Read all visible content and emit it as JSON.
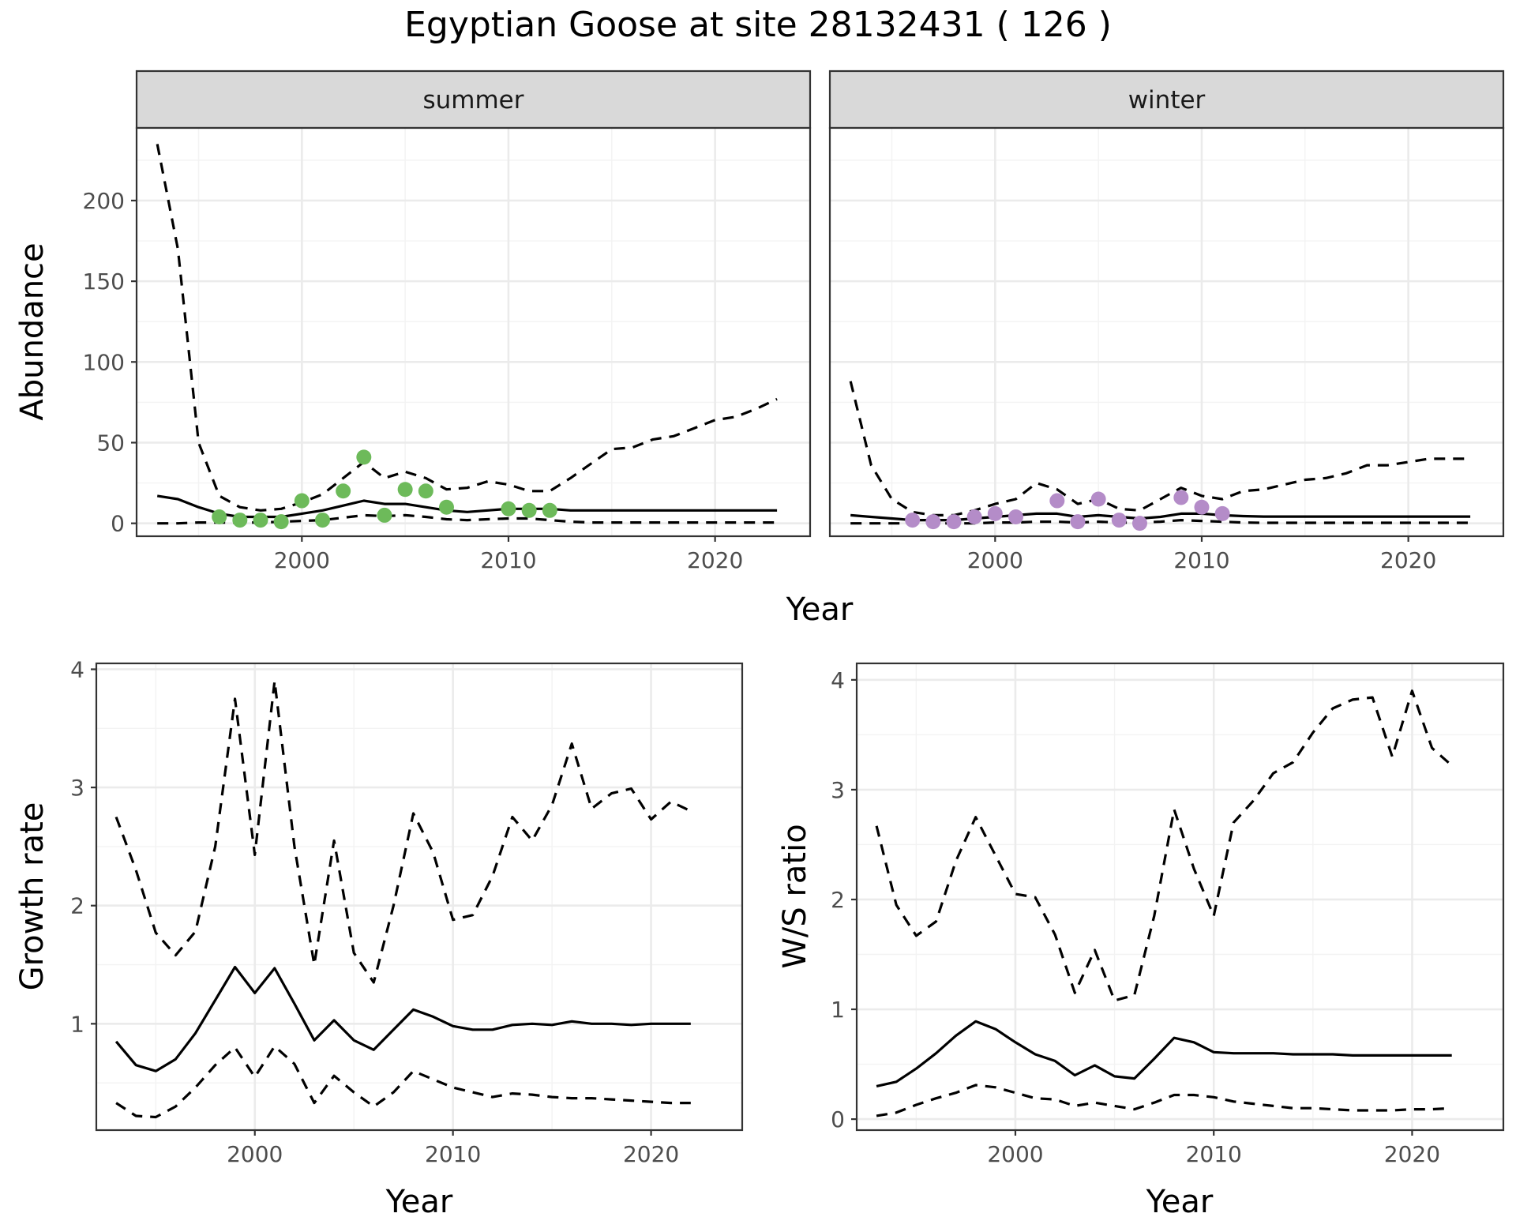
{
  "title": "Egyptian Goose at site 28132431 ( 126 )",
  "colors": {
    "summer_points": "#6dba5a",
    "winter_points": "#b48cc8"
  },
  "chart_data": [
    {
      "id": "abundance",
      "type": "line",
      "ylabel": "Abundance",
      "xlabel": "Year",
      "xlim": [
        1992,
        2024.6
      ],
      "ylim": [
        -8,
        245
      ],
      "x_ticks": [
        2000,
        2010,
        2020
      ],
      "y_ticks": [
        0,
        50,
        100,
        150,
        200
      ],
      "facets": [
        {
          "label": "summer",
          "point_color": "#6dba5a",
          "series": [
            {
              "role": "estimate",
              "style": "solid",
              "x": [
                1993,
                1994,
                1995,
                1996,
                1997,
                1998,
                1999,
                2000,
                2001,
                2002,
                2003,
                2004,
                2005,
                2006,
                2007,
                2008,
                2009,
                2010,
                2011,
                2012,
                2013,
                2014,
                2015,
                2016,
                2017,
                2018,
                2019,
                2020,
                2021,
                2022,
                2023
              ],
              "y": [
                17,
                15,
                10,
                6,
                4,
                4,
                4,
                6,
                8,
                11,
                14,
                12,
                12,
                10,
                8,
                7,
                8,
                9,
                9,
                9,
                8,
                8,
                8,
                8,
                8,
                8,
                8,
                8,
                8,
                8,
                8
              ]
            },
            {
              "role": "upper",
              "style": "dashed",
              "x": [
                1993,
                1994,
                1995,
                1996,
                1997,
                1998,
                1999,
                2000,
                2001,
                2002,
                2003,
                2004,
                2005,
                2006,
                2007,
                2008,
                2009,
                2010,
                2011,
                2012,
                2013,
                2014,
                2015,
                2016,
                2017,
                2018,
                2019,
                2020,
                2021,
                2022,
                2023
              ],
              "y": [
                235,
                170,
                50,
                17,
                10,
                8,
                9,
                13,
                18,
                28,
                38,
                28,
                32,
                28,
                21,
                22,
                26,
                24,
                20,
                20,
                28,
                37,
                46,
                47,
                52,
                54,
                59,
                64,
                66,
                71,
                77
              ]
            },
            {
              "role": "lower",
              "style": "dashed",
              "x": [
                1993,
                1994,
                1995,
                1996,
                1997,
                1998,
                1999,
                2000,
                2001,
                2002,
                2003,
                2004,
                2005,
                2006,
                2007,
                2008,
                2009,
                2010,
                2011,
                2012,
                2013,
                2014,
                2015,
                2016,
                2017,
                2018,
                2019,
                2020,
                2021,
                2022,
                2023
              ],
              "y": [
                0,
                0,
                0.5,
                0.5,
                0.5,
                0.5,
                1,
                1.5,
                2,
                3.5,
                5,
                4.5,
                5,
                4,
                2.5,
                2,
                2.5,
                3,
                3,
                2,
                1,
                0.5,
                0.5,
                0.5,
                0.5,
                0.5,
                0.5,
                0.5,
                0.5,
                0.5,
                0.5
              ]
            }
          ],
          "points": {
            "x": [
              1996,
              1997,
              1998,
              1999,
              2000,
              2001,
              2002,
              2003,
              2004,
              2005,
              2006,
              2007,
              2010,
              2011,
              2012
            ],
            "y": [
              4,
              2,
              2,
              1,
              14,
              2,
              20,
              41,
              5,
              21,
              20,
              10,
              9,
              8,
              8
            ]
          }
        },
        {
          "label": "winter",
          "point_color": "#b48cc8",
          "series": [
            {
              "role": "estimate",
              "style": "solid",
              "x": [
                1993,
                1994,
                1995,
                1996,
                1997,
                1998,
                1999,
                2000,
                2001,
                2002,
                2003,
                2004,
                2005,
                2006,
                2007,
                2008,
                2009,
                2010,
                2011,
                2012,
                2013,
                2014,
                2015,
                2016,
                2017,
                2018,
                2019,
                2020,
                2021,
                2022,
                2023
              ],
              "y": [
                5,
                4,
                3,
                2,
                2,
                2,
                3,
                4,
                5,
                6,
                6,
                4,
                5,
                4,
                3,
                4,
                6,
                6,
                5,
                4.5,
                4.2,
                4.2,
                4.2,
                4.2,
                4.2,
                4.2,
                4.2,
                4.2,
                4.2,
                4.2,
                4.2
              ]
            },
            {
              "role": "upper",
              "style": "dashed",
              "x": [
                1993,
                1994,
                1995,
                1996,
                1997,
                1998,
                1999,
                2000,
                2001,
                2002,
                2003,
                2004,
                2005,
                2006,
                2007,
                2008,
                2009,
                2010,
                2011,
                2012,
                2013,
                2014,
                2015,
                2016,
                2017,
                2018,
                2019,
                2020,
                2021,
                2022,
                2023
              ],
              "y": [
                88,
                36,
                15,
                7,
                5,
                5,
                8,
                12,
                15,
                25,
                21,
                12,
                15,
                9,
                8,
                15,
                22,
                17,
                15,
                20,
                21,
                24,
                27,
                28,
                31,
                36,
                36,
                38,
                40,
                40,
                40
              ]
            },
            {
              "role": "lower",
              "style": "dashed",
              "x": [
                1993,
                1994,
                1995,
                1996,
                1997,
                1998,
                1999,
                2000,
                2001,
                2002,
                2003,
                2004,
                2005,
                2006,
                2007,
                2008,
                2009,
                2010,
                2011,
                2012,
                2013,
                2014,
                2015,
                2016,
                2017,
                2018,
                2019,
                2020,
                2021,
                2022,
                2023
              ],
              "y": [
                0,
                0,
                0,
                0,
                0,
                0,
                0,
                0.5,
                0.5,
                1,
                1,
                0.5,
                1,
                0.5,
                0.5,
                1,
                2,
                1.5,
                1,
                0.5,
                0.3,
                0.3,
                0.3,
                0.3,
                0.3,
                0.3,
                0.3,
                0.3,
                0.3,
                0.3,
                0.3
              ]
            }
          ],
          "points": {
            "x": [
              1996,
              1997,
              1998,
              1999,
              2000,
              2001,
              2003,
              2004,
              2005,
              2006,
              2007,
              2009,
              2010,
              2011
            ],
            "y": [
              2,
              1,
              1,
              4,
              6,
              4,
              14,
              1,
              15,
              2,
              0,
              16,
              10,
              6
            ]
          }
        }
      ]
    },
    {
      "id": "growth",
      "type": "line",
      "ylabel": "Growth rate",
      "xlabel": "Year",
      "xlim": [
        1992,
        2024.6
      ],
      "ylim": [
        0.1,
        4.05
      ],
      "x_ticks": [
        2000,
        2010,
        2020
      ],
      "y_ticks": [
        1,
        2,
        3,
        4
      ],
      "series": [
        {
          "role": "estimate",
          "style": "solid",
          "x": [
            1993,
            1994,
            1995,
            1996,
            1997,
            1998,
            1999,
            2000,
            2001,
            2002,
            2003,
            2004,
            2005,
            2006,
            2007,
            2008,
            2009,
            2010,
            2011,
            2012,
            2013,
            2014,
            2015,
            2016,
            2017,
            2018,
            2019,
            2020,
            2021,
            2022
          ],
          "y": [
            0.85,
            0.65,
            0.6,
            0.7,
            0.92,
            1.2,
            1.48,
            1.26,
            1.47,
            1.17,
            0.86,
            1.03,
            0.86,
            0.78,
            0.95,
            1.12,
            1.06,
            0.98,
            0.95,
            0.95,
            0.99,
            1.0,
            0.99,
            1.02,
            1.0,
            1.0,
            0.99,
            1.0,
            1.0,
            1.0
          ]
        },
        {
          "role": "upper",
          "style": "dashed",
          "x": [
            1993,
            1994,
            1995,
            1996,
            1997,
            1998,
            1999,
            2000,
            2001,
            2002,
            2003,
            2004,
            2005,
            2006,
            2007,
            2008,
            2009,
            2010,
            2011,
            2012,
            2013,
            2014,
            2015,
            2016,
            2017,
            2018,
            2019,
            2020,
            2021,
            2022
          ],
          "y": [
            2.75,
            2.3,
            1.77,
            1.58,
            1.78,
            2.5,
            3.75,
            2.43,
            3.9,
            2.5,
            1.5,
            2.55,
            1.6,
            1.35,
            2.0,
            2.78,
            2.45,
            1.88,
            1.92,
            2.25,
            2.75,
            2.55,
            2.85,
            3.37,
            2.82,
            2.95,
            2.99,
            2.73,
            2.88,
            2.8
          ]
        },
        {
          "role": "lower",
          "style": "dashed",
          "x": [
            1993,
            1994,
            1995,
            1996,
            1997,
            1998,
            1999,
            2000,
            2001,
            2002,
            2003,
            2004,
            2005,
            2006,
            2007,
            2008,
            2009,
            2010,
            2011,
            2012,
            2013,
            2014,
            2015,
            2016,
            2017,
            2018,
            2019,
            2020,
            2021,
            2022
          ],
          "y": [
            0.33,
            0.22,
            0.21,
            0.3,
            0.46,
            0.65,
            0.8,
            0.55,
            0.81,
            0.66,
            0.33,
            0.56,
            0.42,
            0.3,
            0.42,
            0.6,
            0.53,
            0.46,
            0.42,
            0.38,
            0.41,
            0.4,
            0.38,
            0.37,
            0.37,
            0.36,
            0.35,
            0.34,
            0.33,
            0.33
          ]
        }
      ]
    },
    {
      "id": "ws_ratio",
      "type": "line",
      "ylabel": "W/S ratio",
      "xlabel": "Year",
      "xlim": [
        1992,
        2024.6
      ],
      "ylim": [
        -0.1,
        4.15
      ],
      "x_ticks": [
        2000,
        2010,
        2020
      ],
      "y_ticks": [
        0,
        1,
        2,
        3,
        4
      ],
      "series": [
        {
          "role": "estimate",
          "style": "solid",
          "x": [
            1993,
            1994,
            1995,
            1996,
            1997,
            1998,
            1999,
            2000,
            2001,
            2002,
            2003,
            2004,
            2005,
            2006,
            2007,
            2008,
            2009,
            2010,
            2011,
            2012,
            2013,
            2014,
            2015,
            2016,
            2017,
            2018,
            2019,
            2020,
            2021,
            2022
          ],
          "y": [
            0.3,
            0.34,
            0.46,
            0.6,
            0.76,
            0.89,
            0.82,
            0.7,
            0.59,
            0.53,
            0.4,
            0.49,
            0.39,
            0.37,
            0.55,
            0.74,
            0.7,
            0.61,
            0.6,
            0.6,
            0.6,
            0.59,
            0.59,
            0.59,
            0.58,
            0.58,
            0.58,
            0.58,
            0.58,
            0.58
          ]
        },
        {
          "role": "upper",
          "style": "dashed",
          "x": [
            1993,
            1994,
            1995,
            1996,
            1997,
            1998,
            1999,
            2000,
            2001,
            2002,
            2003,
            2004,
            2005,
            2006,
            2007,
            2008,
            2009,
            2010,
            2011,
            2012,
            2013,
            2014,
            2015,
            2016,
            2017,
            2018,
            2019,
            2020,
            2021,
            2022
          ],
          "y": [
            2.67,
            1.95,
            1.67,
            1.8,
            2.35,
            2.75,
            2.4,
            2.05,
            2.02,
            1.68,
            1.15,
            1.54,
            1.08,
            1.13,
            1.85,
            2.82,
            2.28,
            1.85,
            2.7,
            2.9,
            3.15,
            3.25,
            3.52,
            3.74,
            3.82,
            3.84,
            3.3,
            3.9,
            3.38,
            3.22
          ]
        },
        {
          "role": "lower",
          "style": "dashed",
          "x": [
            1993,
            1994,
            1995,
            1996,
            1997,
            1998,
            1999,
            2000,
            2001,
            2002,
            2003,
            2004,
            2005,
            2006,
            2007,
            2008,
            2009,
            2010,
            2011,
            2012,
            2013,
            2014,
            2015,
            2016,
            2017,
            2018,
            2019,
            2020,
            2021,
            2022
          ],
          "y": [
            0.03,
            0.06,
            0.13,
            0.19,
            0.24,
            0.31,
            0.29,
            0.24,
            0.19,
            0.18,
            0.12,
            0.15,
            0.12,
            0.09,
            0.15,
            0.22,
            0.22,
            0.2,
            0.16,
            0.14,
            0.12,
            0.1,
            0.1,
            0.09,
            0.08,
            0.08,
            0.08,
            0.09,
            0.09,
            0.1
          ]
        }
      ]
    }
  ]
}
